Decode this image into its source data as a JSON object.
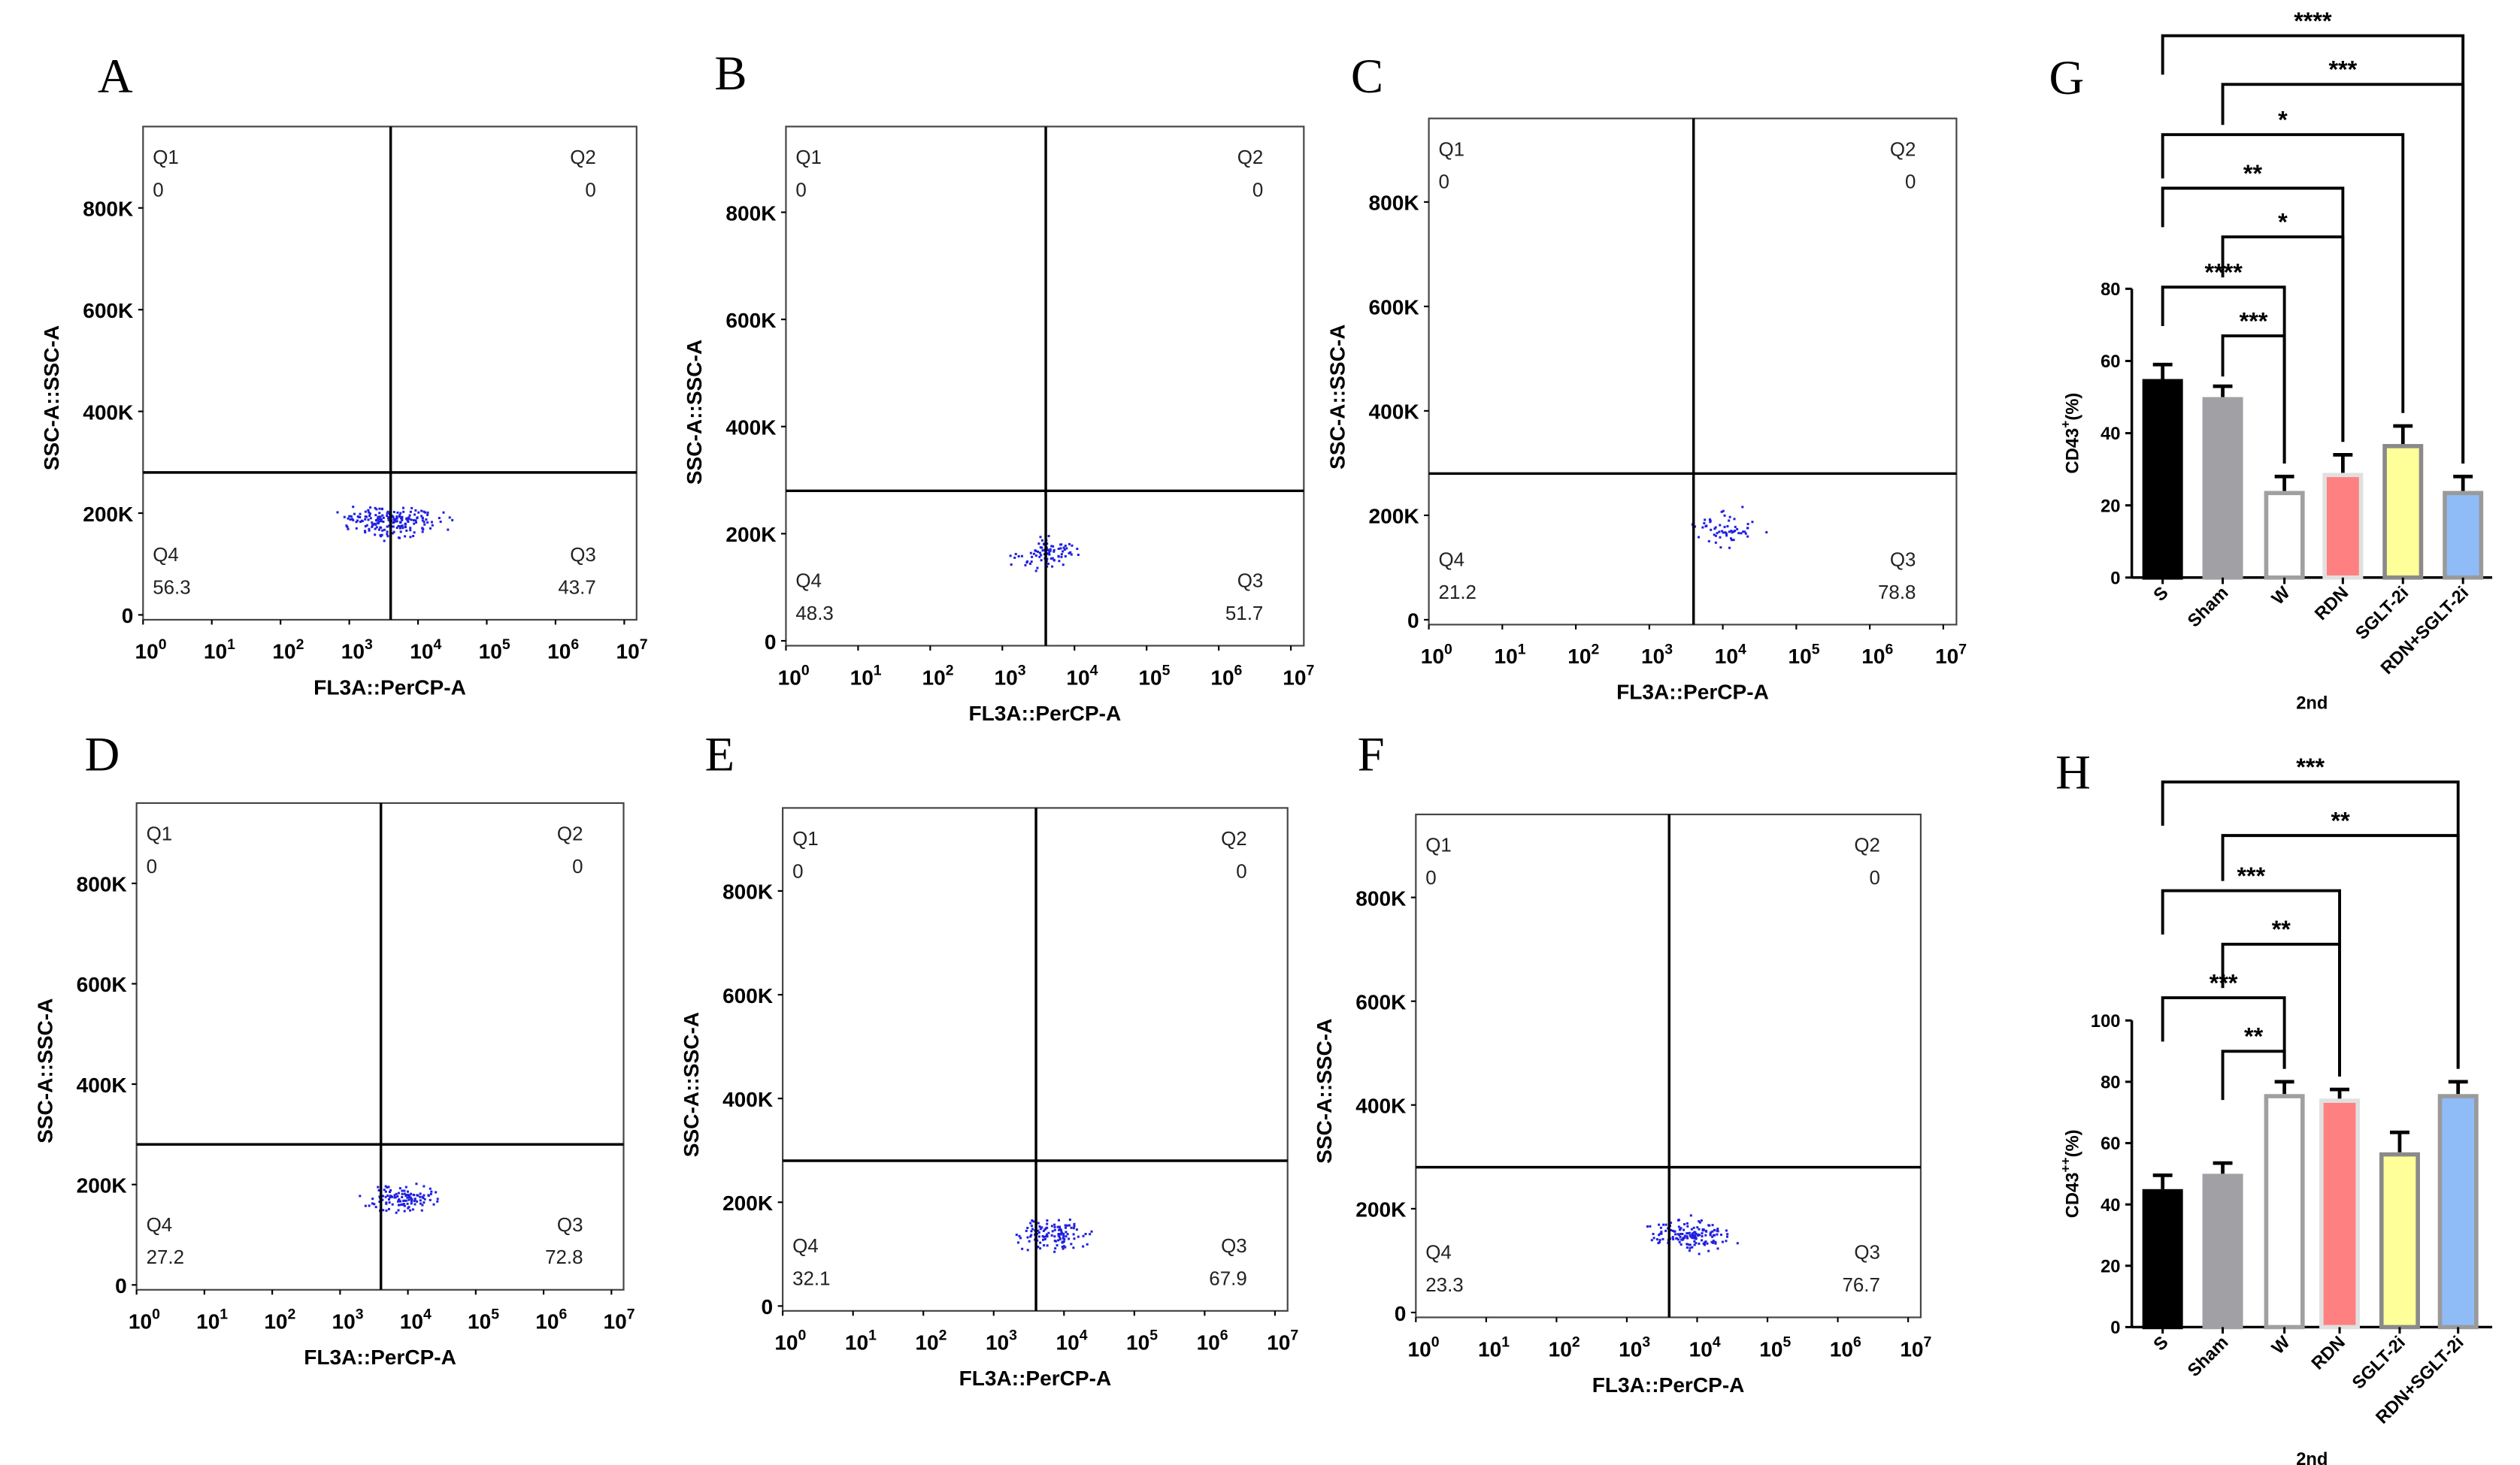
{
  "panels": [
    {
      "label": "A",
      "xlabel": "FL3A::PerCP-A",
      "ylabel": "SSC-A::SSC-A",
      "quadrants": {
        "Q1": "0",
        "Q2": "0",
        "Q3": "43.7",
        "Q4": "56.3"
      }
    },
    {
      "label": "B",
      "xlabel": "FL3A::PerCP-A",
      "ylabel": "SSC-A::SSC-A",
      "quadrants": {
        "Q1": "0",
        "Q2": "0",
        "Q3": "51.7",
        "Q4": "48.3"
      }
    },
    {
      "label": "C",
      "xlabel": "FL3A::PerCP-A",
      "ylabel": "SSC-A::SSC-A",
      "quadrants": {
        "Q1": "0",
        "Q2": "0",
        "Q3": "78.8",
        "Q4": "21.2"
      }
    },
    {
      "label": "D",
      "xlabel": "FL3A::PerCP-A",
      "ylabel": "SSC-A::SSC-A",
      "quadrants": {
        "Q1": "0",
        "Q2": "0",
        "Q3": "72.8",
        "Q4": "27.2"
      }
    },
    {
      "label": "E",
      "xlabel": "FL3A::PerCP-A",
      "ylabel": "SSC-A::SSC-A",
      "quadrants": {
        "Q1": "0",
        "Q2": "0",
        "Q3": "67.9",
        "Q4": "32.1"
      }
    },
    {
      "label": "F",
      "xlabel": "FL3A::PerCP-A",
      "ylabel": "SSC-A::SSC-A",
      "quadrants": {
        "Q1": "0",
        "Q2": "0",
        "Q3": "76.7",
        "Q4": "23.3"
      }
    }
  ],
  "flow_axes": {
    "yticks": [
      "0",
      "200K",
      "400K",
      "600K",
      "800K"
    ],
    "ytick_values": [
      0,
      200000,
      400000,
      600000,
      800000
    ],
    "xticks_base": "10",
    "xticks_exp": [
      "0",
      "1",
      "2",
      "3",
      "4",
      "5",
      "6",
      "7"
    ],
    "x_scale": "log",
    "gate_x": 4000,
    "gate_y": 280000,
    "dot_color": "#2020e0"
  },
  "chart_data": [
    {
      "type": "bar",
      "panel_label": "G",
      "categories": [
        "S",
        "Sham",
        "W",
        "RDN",
        "SGLT-2i",
        "RDN+SGLT-2i"
      ],
      "values": [
        55,
        50,
        24,
        29,
        37,
        24
      ],
      "errors": [
        4,
        3,
        4,
        5,
        5,
        4
      ],
      "ylabel_base": "CD43",
      "ylabel_sup": "+",
      "ylabel_tail": "(%)",
      "xlabel": "2nd",
      "ylim": [
        0,
        80
      ],
      "yticks": [
        "0",
        "20",
        "40",
        "60",
        "80"
      ],
      "fills": [
        "#000000",
        "#a1a1a5",
        "#ffffff",
        "#ff8080",
        "#ffff99",
        "#8fbcf7"
      ],
      "borders": [
        "#000000",
        "#a1a1a5",
        "#a0a0a0",
        "#e0e0e0",
        "#8a8a8a",
        "#9a9a9a"
      ],
      "comparisons": [
        {
          "from": 0,
          "to": 5,
          "label": "****"
        },
        {
          "from": 1,
          "to": 5,
          "label": "***"
        },
        {
          "from": 0,
          "to": 4,
          "label": "*"
        },
        {
          "from": 0,
          "to": 3,
          "label": "**"
        },
        {
          "from": 1,
          "to": 3,
          "label": "*"
        },
        {
          "from": 0,
          "to": 2,
          "label": "****"
        },
        {
          "from": 1,
          "to": 2,
          "label": "***"
        }
      ]
    },
    {
      "type": "bar",
      "panel_label": "H",
      "categories": [
        "S",
        "Sham",
        "W",
        "RDN",
        "SGLT-2i",
        "RDN+SGLT-2i"
      ],
      "values": [
        45,
        50,
        76,
        74.5,
        57,
        76
      ],
      "errors": [
        4.5,
        3.5,
        4,
        3,
        6.5,
        4
      ],
      "ylabel_base": "CD43",
      "ylabel_sup": "++",
      "ylabel_tail": "(%)",
      "xlabel": "2nd",
      "ylim": [
        0,
        100
      ],
      "yticks": [
        "0",
        "20",
        "40",
        "60",
        "80",
        "100"
      ],
      "fills": [
        "#000000",
        "#a1a1a5",
        "#ffffff",
        "#ff8080",
        "#ffff99",
        "#8fbcf7"
      ],
      "borders": [
        "#000000",
        "#a1a1a5",
        "#a0a0a0",
        "#e0e0e0",
        "#8a8a8a",
        "#9a9a9a"
      ],
      "comparisons": [
        {
          "from": 0,
          "to": 5,
          "label": "***"
        },
        {
          "from": 1,
          "to": 5,
          "label": "**"
        },
        {
          "from": 0,
          "to": 3,
          "label": "***"
        },
        {
          "from": 1,
          "to": 3,
          "label": "**"
        },
        {
          "from": 0,
          "to": 2,
          "label": "***"
        },
        {
          "from": 1,
          "to": 2,
          "label": "**"
        }
      ]
    }
  ]
}
